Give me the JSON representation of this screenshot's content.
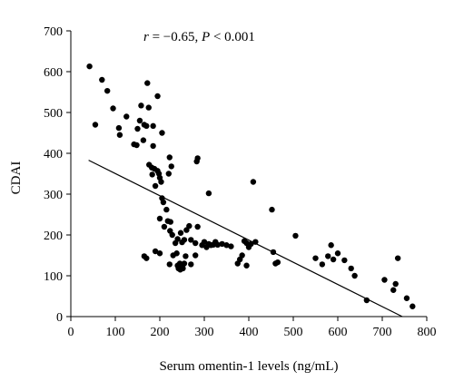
{
  "chart_data": {
    "type": "scatter",
    "title": "",
    "annotation": {
      "r_symbol": "r",
      "r_text": " = −0.65, ",
      "p_symbol": "P",
      "p_text": " < 0.001"
    },
    "xlabel": "Serum omentin-1 levels (ng/mL)",
    "ylabel": "CDAI",
    "xlim": [
      0,
      800
    ],
    "ylim": [
      0,
      700
    ],
    "x_ticks": [
      0,
      100,
      200,
      300,
      400,
      500,
      600,
      700,
      800
    ],
    "y_ticks": [
      0,
      100,
      200,
      300,
      400,
      500,
      600,
      700
    ],
    "grid": false,
    "marker_color": "#000000",
    "line_color": "#000000",
    "regression_line": {
      "x": [
        40,
        745
      ],
      "y": [
        383,
        0
      ]
    },
    "points": [
      {
        "x": 42,
        "y": 613
      },
      {
        "x": 70,
        "y": 580
      },
      {
        "x": 82,
        "y": 553
      },
      {
        "x": 55,
        "y": 470
      },
      {
        "x": 108,
        "y": 462
      },
      {
        "x": 125,
        "y": 490
      },
      {
        "x": 95,
        "y": 510
      },
      {
        "x": 110,
        "y": 445
      },
      {
        "x": 142,
        "y": 422
      },
      {
        "x": 148,
        "y": 420
      },
      {
        "x": 150,
        "y": 460
      },
      {
        "x": 155,
        "y": 480
      },
      {
        "x": 165,
        "y": 470
      },
      {
        "x": 170,
        "y": 467
      },
      {
        "x": 158,
        "y": 517
      },
      {
        "x": 163,
        "y": 432
      },
      {
        "x": 175,
        "y": 512
      },
      {
        "x": 172,
        "y": 572
      },
      {
        "x": 185,
        "y": 467
      },
      {
        "x": 205,
        "y": 450
      },
      {
        "x": 195,
        "y": 540
      },
      {
        "x": 185,
        "y": 418
      },
      {
        "x": 176,
        "y": 372
      },
      {
        "x": 182,
        "y": 365
      },
      {
        "x": 183,
        "y": 348
      },
      {
        "x": 188,
        "y": 362
      },
      {
        "x": 195,
        "y": 357
      },
      {
        "x": 198,
        "y": 350
      },
      {
        "x": 200,
        "y": 340
      },
      {
        "x": 190,
        "y": 320
      },
      {
        "x": 203,
        "y": 330
      },
      {
        "x": 205,
        "y": 290
      },
      {
        "x": 208,
        "y": 280
      },
      {
        "x": 215,
        "y": 262
      },
      {
        "x": 220,
        "y": 350
      },
      {
        "x": 222,
        "y": 390
      },
      {
        "x": 226,
        "y": 368
      },
      {
        "x": 285,
        "y": 388
      },
      {
        "x": 283,
        "y": 380
      },
      {
        "x": 310,
        "y": 302
      },
      {
        "x": 200,
        "y": 240
      },
      {
        "x": 210,
        "y": 220
      },
      {
        "x": 218,
        "y": 234
      },
      {
        "x": 224,
        "y": 232
      },
      {
        "x": 223,
        "y": 210
      },
      {
        "x": 228,
        "y": 200
      },
      {
        "x": 235,
        "y": 180
      },
      {
        "x": 240,
        "y": 190
      },
      {
        "x": 247,
        "y": 205
      },
      {
        "x": 250,
        "y": 182
      },
      {
        "x": 255,
        "y": 188
      },
      {
        "x": 260,
        "y": 212
      },
      {
        "x": 266,
        "y": 222
      },
      {
        "x": 270,
        "y": 188
      },
      {
        "x": 280,
        "y": 180
      },
      {
        "x": 285,
        "y": 220
      },
      {
        "x": 295,
        "y": 175
      },
      {
        "x": 300,
        "y": 183
      },
      {
        "x": 305,
        "y": 170
      },
      {
        "x": 310,
        "y": 178
      },
      {
        "x": 315,
        "y": 175
      },
      {
        "x": 320,
        "y": 176
      },
      {
        "x": 325,
        "y": 183
      },
      {
        "x": 330,
        "y": 176
      },
      {
        "x": 340,
        "y": 178
      },
      {
        "x": 350,
        "y": 175
      },
      {
        "x": 360,
        "y": 172
      },
      {
        "x": 375,
        "y": 130
      },
      {
        "x": 385,
        "y": 150
      },
      {
        "x": 390,
        "y": 185
      },
      {
        "x": 395,
        "y": 180
      },
      {
        "x": 400,
        "y": 170
      },
      {
        "x": 405,
        "y": 178
      },
      {
        "x": 410,
        "y": 330
      },
      {
        "x": 415,
        "y": 183
      },
      {
        "x": 165,
        "y": 148
      },
      {
        "x": 170,
        "y": 143
      },
      {
        "x": 190,
        "y": 160
      },
      {
        "x": 200,
        "y": 155
      },
      {
        "x": 222,
        "y": 128
      },
      {
        "x": 230,
        "y": 150
      },
      {
        "x": 238,
        "y": 155
      },
      {
        "x": 240,
        "y": 125
      },
      {
        "x": 242,
        "y": 118
      },
      {
        "x": 245,
        "y": 130
      },
      {
        "x": 246,
        "y": 115
      },
      {
        "x": 250,
        "y": 125
      },
      {
        "x": 252,
        "y": 118
      },
      {
        "x": 255,
        "y": 130
      },
      {
        "x": 258,
        "y": 148
      },
      {
        "x": 270,
        "y": 128
      },
      {
        "x": 280,
        "y": 150
      },
      {
        "x": 380,
        "y": 140
      },
      {
        "x": 395,
        "y": 125
      },
      {
        "x": 452,
        "y": 262
      },
      {
        "x": 455,
        "y": 158
      },
      {
        "x": 460,
        "y": 130
      },
      {
        "x": 465,
        "y": 133
      },
      {
        "x": 505,
        "y": 198
      },
      {
        "x": 550,
        "y": 143
      },
      {
        "x": 565,
        "y": 128
      },
      {
        "x": 578,
        "y": 148
      },
      {
        "x": 585,
        "y": 175
      },
      {
        "x": 590,
        "y": 140
      },
      {
        "x": 600,
        "y": 155
      },
      {
        "x": 615,
        "y": 138
      },
      {
        "x": 630,
        "y": 118
      },
      {
        "x": 638,
        "y": 100
      },
      {
        "x": 665,
        "y": 40
      },
      {
        "x": 705,
        "y": 90
      },
      {
        "x": 725,
        "y": 65
      },
      {
        "x": 730,
        "y": 80
      },
      {
        "x": 735,
        "y": 143
      },
      {
        "x": 755,
        "y": 45
      },
      {
        "x": 768,
        "y": 25
      }
    ]
  }
}
